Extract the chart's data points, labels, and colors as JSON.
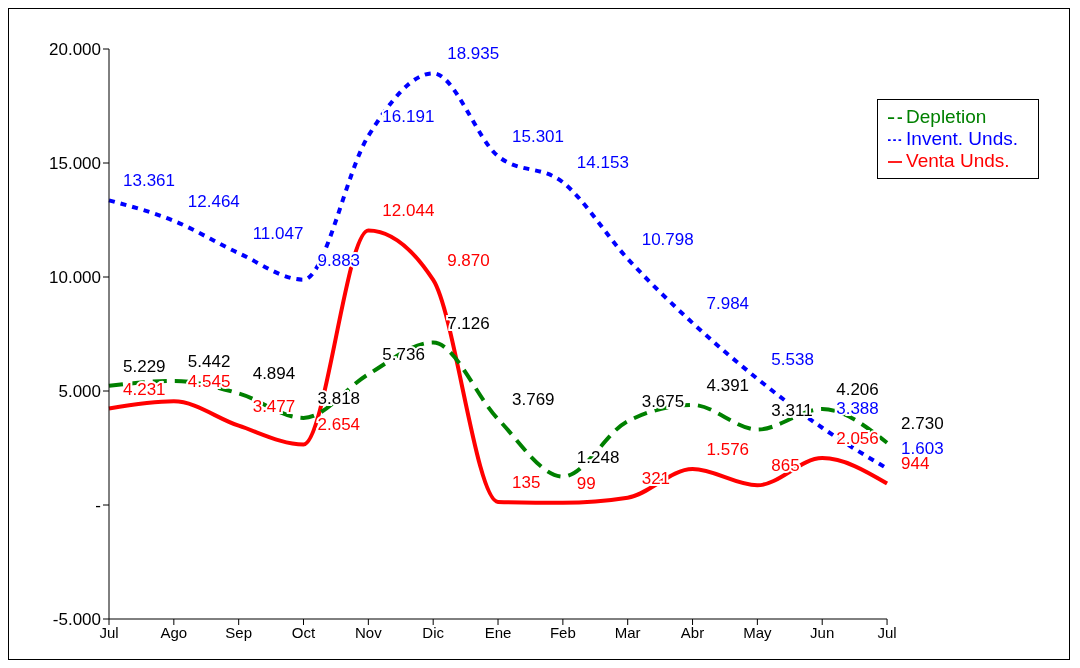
{
  "chart_data": {
    "type": "line",
    "categories": [
      "Jul",
      "Ago",
      "Sep",
      "Oct",
      "Nov",
      "Dic",
      "Ene",
      "Feb",
      "Mar",
      "Abr",
      "May",
      "Jun",
      "Jul"
    ],
    "series": [
      {
        "name": "Invent. Unds.",
        "color": "#0000ff",
        "line_style": "dotted",
        "values": [
          13361,
          12464,
          11047,
          9883,
          16191,
          18935,
          15301,
          14153,
          10798,
          7984,
          5538,
          3388,
          1603
        ],
        "value_labels": [
          "13.361",
          "12.464",
          "11.047",
          "9.883",
          "16.191",
          "18.935",
          "15.301",
          "14.153",
          "10.798",
          "7.984",
          "5.538",
          "3.388",
          "1.603"
        ]
      },
      {
        "name": "Venta Unds.",
        "color": "#ff0000",
        "line_style": "solid",
        "values": [
          4231,
          4545,
          3477,
          2654,
          12044,
          9870,
          135,
          99,
          321,
          1576,
          865,
          2056,
          944
        ],
        "value_labels": [
          "4.231",
          "4.545",
          "3.477",
          "2.654",
          "12.044",
          "9.870",
          "135",
          "99",
          "321",
          "1.576",
          "865",
          "2.056",
          "944"
        ]
      },
      {
        "name": "Depletion",
        "color": "#008000",
        "line_style": "dashed",
        "values": [
          5229,
          5442,
          4894,
          3818,
          5736,
          7126,
          3769,
          1248,
          3675,
          4391,
          3311,
          4206,
          2730
        ],
        "value_labels": [
          "5.229",
          "5.442",
          "4.894",
          "3.818",
          "5.736",
          "7.126",
          "3.769",
          "1.248",
          "3.675",
          "4.391",
          "3.311",
          "4.206",
          "2.730"
        ]
      }
    ],
    "ylim": [
      -5000,
      20000
    ],
    "yticks": [
      {
        "value": -5000,
        "label": "-5.000"
      },
      {
        "value": 0,
        "label": "-"
      },
      {
        "value": 5000,
        "label": "5.000"
      },
      {
        "value": 10000,
        "label": "10.000"
      },
      {
        "value": 15000,
        "label": "15.000"
      },
      {
        "value": 20000,
        "label": "20.000"
      }
    ],
    "grid": false,
    "legend": "top right",
    "marker": "none"
  }
}
